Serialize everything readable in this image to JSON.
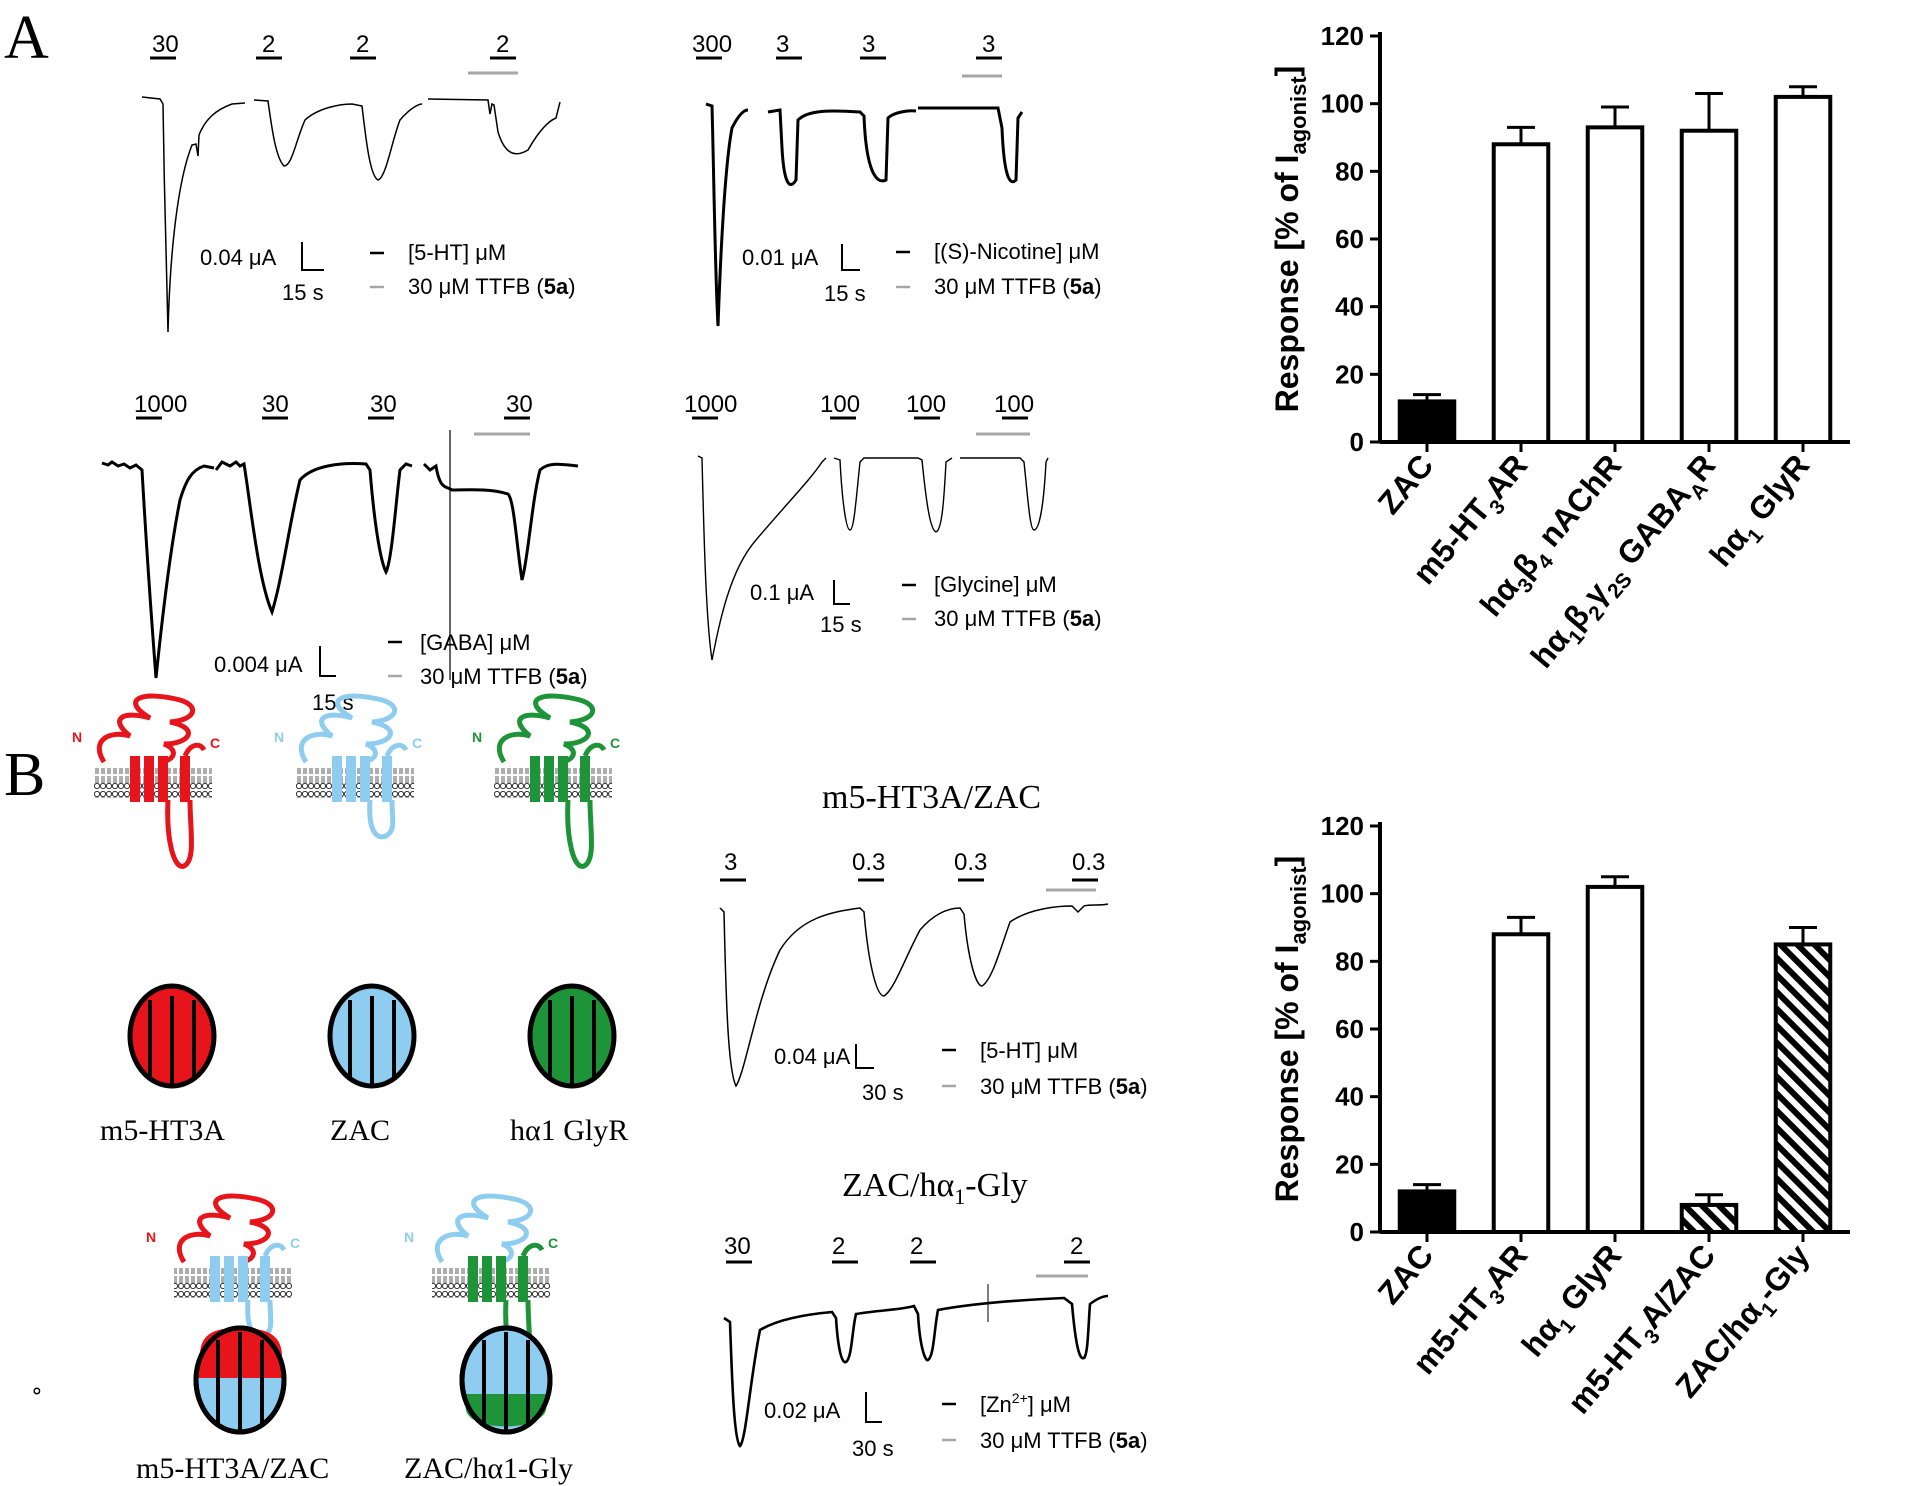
{
  "panel_labels": [
    "A",
    "B"
  ],
  "panelA": {
    "traces": [
      {
        "agonists": [
          "30",
          "2",
          "2",
          "2"
        ],
        "scale_current": "0.04 μA",
        "scale_time": "15 s",
        "legend_agonist": "[5-HT] μM",
        "legend_ttfb_pre": "30 μM TTFB (",
        "legend_ttfb_bold": "5a",
        "legend_ttfb_post": ")"
      },
      {
        "agonists": [
          "300",
          "3",
          "3",
          "3"
        ],
        "scale_current": "0.01 μA",
        "scale_time": "15 s",
        "legend_agonist": "[(S)-Nicotine] μM",
        "legend_ttfb_pre": "30 μM TTFB (",
        "legend_ttfb_bold": "5a",
        "legend_ttfb_post": ")"
      },
      {
        "agonists": [
          "1000",
          "30",
          "30",
          "30"
        ],
        "scale_current": "0.004 μA",
        "scale_time": "15 s",
        "legend_agonist": "[GABA] μM",
        "legend_ttfb_pre": "30 μM TTFB (",
        "legend_ttfb_bold": "5a",
        "legend_ttfb_post": ")"
      },
      {
        "agonists": [
          "1000",
          "100",
          "100",
          "100"
        ],
        "scale_current": "0.1 μA",
        "scale_time": "15 s",
        "legend_agonist": "[Glycine] μM",
        "legend_ttfb_pre": "30 μM TTFB (",
        "legend_ttfb_bold": "5a",
        "legend_ttfb_post": ")"
      }
    ]
  },
  "panelB": {
    "diagram_labels": [
      "m5-HT3A",
      "ZAC",
      "hα1 GlyR",
      "m5-HT3A/ZAC",
      "ZAC/hα1-Gly"
    ],
    "colors": {
      "ht3": "#e8141b",
      "zac": "#8ecdf0",
      "gly": "#1e9438",
      "black": "#000000",
      "gray": "#a6a6a6"
    },
    "topology_termini": [
      "N",
      "C"
    ],
    "trace_titles": [
      "m5-HT3A/ZAC",
      "ZAC/hα1-Gly"
    ],
    "traces": [
      {
        "agonists": [
          "3",
          "0.3",
          "0.3",
          "0.3"
        ],
        "scale_current": "0.04 μA",
        "scale_time": "30 s",
        "legend_agonist": "[5-HT] μM",
        "legend_ttfb_pre": "30 μM TTFB (",
        "legend_ttfb_bold": "5a",
        "legend_ttfb_post": ")"
      },
      {
        "agonists": [
          "30",
          "2",
          "2",
          "2"
        ],
        "scale_current": "0.02 μA",
        "scale_time": "30 s",
        "legend_agonist": "[Zn2+] μM",
        "legend_ttfb_pre": "30 μM TTFB (",
        "legend_ttfb_bold": "5a",
        "legend_ttfb_post": ")"
      }
    ],
    "stray_mark": "∘"
  },
  "chart_data": [
    {
      "type": "bar",
      "categories": [
        "ZAC",
        "m5-HT3AR",
        "hα3β4 nAChR",
        "hα1β2γ2S GABAAR",
        "hα1 GlyR"
      ],
      "values": [
        12,
        88,
        93,
        92,
        102
      ],
      "errors": [
        2,
        5,
        6,
        11,
        3
      ],
      "fills": [
        "black",
        "white",
        "white",
        "white",
        "white"
      ],
      "ylabel": "Response [% of Iagonist]",
      "yticks": [
        "0",
        "20",
        "40",
        "60",
        "80",
        "100",
        "120"
      ],
      "ylim": [
        0,
        120
      ]
    },
    {
      "type": "bar",
      "categories": [
        "ZAC",
        "m5-HT3AR",
        "hα1 GlyR",
        "m5-HT3A/ZAC",
        "ZAC/hα1-Gly"
      ],
      "values": [
        12,
        88,
        102,
        8,
        85
      ],
      "errors": [
        2,
        5,
        3,
        3,
        5
      ],
      "fills": [
        "black",
        "white",
        "white",
        "hatched",
        "hatched"
      ],
      "ylabel": "Response [% of Iagonist]",
      "yticks": [
        "0",
        "20",
        "40",
        "60",
        "80",
        "100",
        "120"
      ],
      "ylim": [
        0,
        120
      ]
    }
  ]
}
